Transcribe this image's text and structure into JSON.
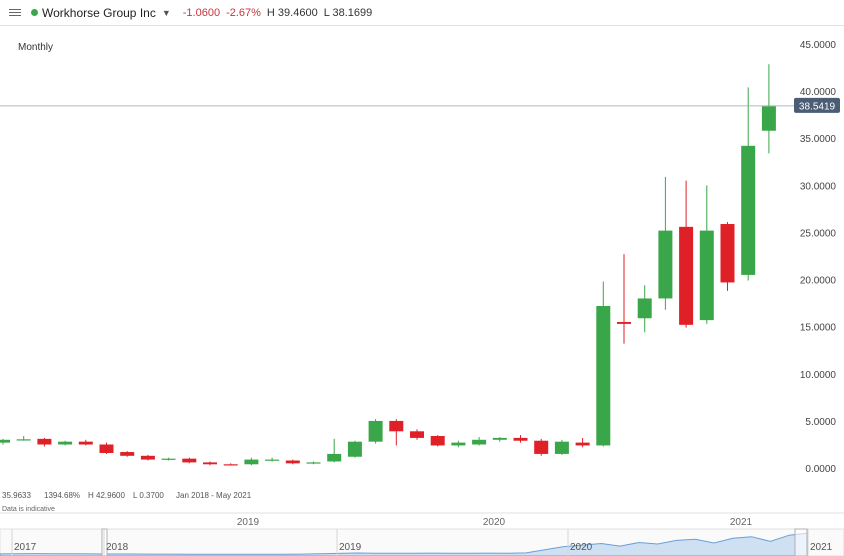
{
  "header": {
    "instrument": "Workhorse Group Inc",
    "change": "-1.0600",
    "change_pct": "-2.67%",
    "high": "H 39.4600",
    "low": "L 38.1699",
    "status_color": "#3aa64a"
  },
  "period_label": "Monthly",
  "info": {
    "val1": "35.9633",
    "val2": "1394.68%",
    "high": "H 42.9600",
    "low": "L 0.3700",
    "range": "Jan 2018 - May 2021",
    "disclaimer": "Data is indicative"
  },
  "colors": {
    "up": "#3aa64a",
    "down": "#e02027",
    "nav_fill": "#cfe0f2",
    "nav_line": "#6c9fd6",
    "tag": "#4a5d75"
  },
  "chart_data": {
    "type": "candlestick",
    "ylim": [
      0,
      45
    ],
    "yticks": [
      "45.0000",
      "40.0000",
      "35.0000",
      "30.0000",
      "25.0000",
      "20.0000",
      "15.0000",
      "10.0000",
      "5.0000",
      "0.0000"
    ],
    "current_price": 38.5419,
    "current_price_label": "38.5419",
    "x_labels": [
      "2019",
      "2020",
      "2021"
    ],
    "navigator_labels": [
      "2017",
      "2018",
      "2019",
      "2020",
      "2021"
    ],
    "candles": [
      {
        "o": 2.8,
        "h": 3.2,
        "l": 2.6,
        "c": 3.1
      },
      {
        "o": 3.1,
        "h": 3.5,
        "l": 3.0,
        "c": 3.15
      },
      {
        "o": 3.2,
        "h": 3.3,
        "l": 2.4,
        "c": 2.6
      },
      {
        "o": 2.6,
        "h": 3.0,
        "l": 2.5,
        "c": 2.9
      },
      {
        "o": 2.9,
        "h": 3.1,
        "l": 2.5,
        "c": 2.6
      },
      {
        "o": 2.6,
        "h": 2.8,
        "l": 1.6,
        "c": 1.7
      },
      {
        "o": 1.8,
        "h": 1.9,
        "l": 1.3,
        "c": 1.4
      },
      {
        "o": 1.4,
        "h": 1.5,
        "l": 0.9,
        "c": 1.0
      },
      {
        "o": 1.0,
        "h": 1.2,
        "l": 0.9,
        "c": 1.1
      },
      {
        "o": 1.1,
        "h": 1.2,
        "l": 0.6,
        "c": 0.7
      },
      {
        "o": 0.7,
        "h": 0.8,
        "l": 0.4,
        "c": 0.5
      },
      {
        "o": 0.5,
        "h": 0.6,
        "l": 0.37,
        "c": 0.4
      },
      {
        "o": 0.5,
        "h": 1.2,
        "l": 0.4,
        "c": 1.0
      },
      {
        "o": 0.9,
        "h": 1.2,
        "l": 0.8,
        "c": 1.0
      },
      {
        "o": 0.9,
        "h": 1.0,
        "l": 0.5,
        "c": 0.6
      },
      {
        "o": 0.6,
        "h": 0.8,
        "l": 0.5,
        "c": 0.7
      },
      {
        "o": 0.8,
        "h": 3.2,
        "l": 0.7,
        "c": 1.6
      },
      {
        "o": 1.3,
        "h": 3.0,
        "l": 1.2,
        "c": 2.9
      },
      {
        "o": 2.9,
        "h": 5.3,
        "l": 2.7,
        "c": 5.1
      },
      {
        "o": 5.1,
        "h": 5.3,
        "l": 2.5,
        "c": 4.0
      },
      {
        "o": 4.0,
        "h": 4.2,
        "l": 3.1,
        "c": 3.3
      },
      {
        "o": 3.5,
        "h": 3.6,
        "l": 2.4,
        "c": 2.5
      },
      {
        "o": 2.5,
        "h": 3.0,
        "l": 2.3,
        "c": 2.8
      },
      {
        "o": 2.6,
        "h": 3.4,
        "l": 2.5,
        "c": 3.1
      },
      {
        "o": 3.1,
        "h": 3.4,
        "l": 2.9,
        "c": 3.3
      },
      {
        "o": 3.3,
        "h": 3.6,
        "l": 2.8,
        "c": 3.0
      },
      {
        "o": 3.0,
        "h": 3.2,
        "l": 1.4,
        "c": 1.6
      },
      {
        "o": 1.6,
        "h": 3.1,
        "l": 1.5,
        "c": 2.9
      },
      {
        "o": 2.8,
        "h": 3.3,
        "l": 2.3,
        "c": 2.5
      },
      {
        "o": 2.5,
        "h": 19.9,
        "l": 2.4,
        "c": 17.3
      },
      {
        "o": 15.6,
        "h": 22.8,
        "l": 13.3,
        "c": 15.4
      },
      {
        "o": 16.0,
        "h": 19.5,
        "l": 14.5,
        "c": 18.1
      },
      {
        "o": 18.1,
        "h": 31.0,
        "l": 16.9,
        "c": 25.3
      },
      {
        "o": 25.7,
        "h": 30.6,
        "l": 15.0,
        "c": 15.3
      },
      {
        "o": 15.8,
        "h": 30.1,
        "l": 15.4,
        "c": 25.3
      },
      {
        "o": 26.0,
        "h": 26.2,
        "l": 18.9,
        "c": 19.8
      },
      {
        "o": 20.6,
        "h": 40.5,
        "l": 20.0,
        "c": 34.3
      },
      {
        "o": 35.9,
        "h": 42.96,
        "l": 33.5,
        "c": 38.5
      }
    ]
  }
}
